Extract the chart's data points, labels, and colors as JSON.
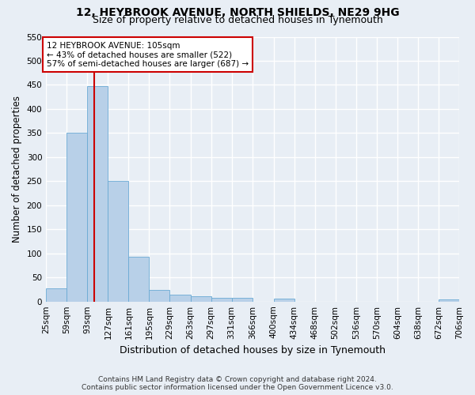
{
  "title1": "12, HEYBROOK AVENUE, NORTH SHIELDS, NE29 9HG",
  "title2": "Size of property relative to detached houses in Tynemouth",
  "xlabel": "Distribution of detached houses by size in Tynemouth",
  "ylabel": "Number of detached properties",
  "bin_edges": [
    25,
    59,
    93,
    127,
    161,
    195,
    229,
    263,
    297,
    331,
    366,
    400,
    434,
    468,
    502,
    536,
    570,
    604,
    638,
    672,
    706
  ],
  "bar_heights": [
    28,
    350,
    447,
    250,
    93,
    24,
    14,
    11,
    7,
    7,
    0,
    6,
    0,
    0,
    0,
    0,
    0,
    0,
    0,
    5
  ],
  "bar_color": "#b8d0e8",
  "bar_edge_color": "#6aaad4",
  "property_size": 105,
  "red_line_color": "#cc0000",
  "annotation_text": "12 HEYBROOK AVENUE: 105sqm\n← 43% of detached houses are smaller (522)\n57% of semi-detached houses are larger (687) →",
  "annotation_box_color": "#ffffff",
  "annotation_box_edge": "#cc0000",
  "ylim": [
    0,
    550
  ],
  "yticks": [
    0,
    50,
    100,
    150,
    200,
    250,
    300,
    350,
    400,
    450,
    500,
    550
  ],
  "footer1": "Contains HM Land Registry data © Crown copyright and database right 2024.",
  "footer2": "Contains public sector information licensed under the Open Government Licence v3.0.",
  "background_color": "#e8eef5",
  "plot_bg_color": "#e8eef5",
  "grid_color": "#ffffff",
  "title_fontsize": 10,
  "subtitle_fontsize": 9,
  "axis_label_fontsize": 8.5,
  "tick_fontsize": 7.5,
  "footer_fontsize": 6.5
}
